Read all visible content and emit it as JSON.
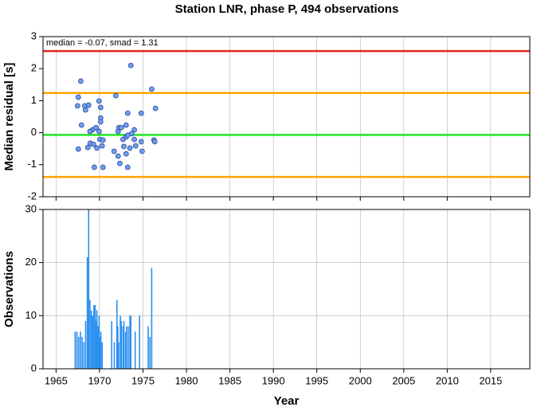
{
  "chart_data": [
    {
      "type": "scatter",
      "title": "Station LNR, phase P, 494 observations",
      "annotation": "median = -0.07, smad = 1.31",
      "ylabel": "Median residual [s]",
      "xlim": [
        1963.5,
        2019.5
      ],
      "xticks": [
        1965,
        1970,
        1975,
        1980,
        1985,
        1990,
        1995,
        2000,
        2005,
        2010,
        2015
      ],
      "ylim": [
        -2,
        3
      ],
      "yticks": [
        -2,
        -1,
        0,
        1,
        2,
        3
      ],
      "grid": true,
      "color": "#6f9df0",
      "hlines": [
        {
          "value": 2.55,
          "color": "#e8231c"
        },
        {
          "value": 1.24,
          "color": "#ffa500"
        },
        {
          "value": -0.07,
          "color": "#1ee61e"
        },
        {
          "value": -1.38,
          "color": "#ffa500"
        }
      ],
      "x": [
        1967.56,
        1967.47,
        1967.84,
        1967.56,
        1967.93,
        1968.3,
        1968.39,
        1968.75,
        1968.66,
        1968.93,
        1969.2,
        1969.3,
        1969.4,
        1969.6,
        1969.7,
        1969.95,
        1970.13,
        1970.13,
        1970.13,
        1969.95,
        1970.04,
        1970.4,
        1970.3,
        1970.4,
        1968.9,
        1971.87,
        1971.68,
        1972.14,
        1972.23,
        1972.5,
        1972.33,
        1972.14,
        1972.7,
        1972.8,
        1973.06,
        1973.06,
        1973.24,
        1973.24,
        1973.06,
        1973.24,
        1973.6,
        1973.7,
        1973.5,
        1974.0,
        1974.0,
        1974.16,
        1974.8,
        1974.8,
        1974.9,
        1976.0,
        1976.26,
        1976.35,
        1976.44
      ],
      "values": [
        1.11,
        0.84,
        1.61,
        -0.51,
        0.24,
        0.84,
        0.71,
        0.86,
        -0.46,
        -0.33,
        0.09,
        -0.36,
        -1.08,
        0.16,
        -0.48,
        0.99,
        0.79,
        0.46,
        0.34,
        0.04,
        -0.21,
        -0.23,
        -0.41,
        -1.08,
        0.04,
        1.16,
        -0.58,
        0.04,
        0.16,
        0.16,
        -0.96,
        -0.73,
        -0.21,
        -0.43,
        0.24,
        -0.13,
        0.61,
        -0.08,
        -0.66,
        -1.08,
        2.1,
        -0.03,
        -0.48,
        0.09,
        -0.21,
        -0.41,
        0.61,
        -0.28,
        -0.58,
        1.36,
        -0.23,
        -0.28,
        0.76
      ]
    },
    {
      "type": "bar",
      "ylabel": "Observations",
      "xlabel": "Year",
      "xlim": [
        1963.5,
        2019.5
      ],
      "xticks": [
        1965,
        1970,
        1975,
        1980,
        1985,
        1990,
        1995,
        2000,
        2005,
        2010,
        2015
      ],
      "ylim": [
        0,
        30
      ],
      "yticks": [
        0,
        10,
        20,
        30
      ],
      "grid": true,
      "color": "#2b8ff0",
      "x": [
        1967.2,
        1967.4,
        1967.6,
        1967.8,
        1968.0,
        1968.2,
        1968.4,
        1968.6,
        1968.75,
        1968.9,
        1969.05,
        1969.2,
        1969.35,
        1969.5,
        1969.6,
        1969.7,
        1969.85,
        1969.95,
        1970.05,
        1970.15,
        1970.3,
        1971.4,
        1971.7,
        1972.0,
        1972.1,
        1972.2,
        1972.4,
        1972.5,
        1972.7,
        1972.8,
        1973.0,
        1973.1,
        1973.3,
        1973.5,
        1973.6,
        1974.1,
        1974.6,
        1975.6,
        1975.8,
        1976.0
      ],
      "values": [
        7,
        7,
        6,
        7,
        6,
        5,
        9,
        21,
        30,
        13,
        11,
        10,
        12,
        12,
        9,
        11,
        8,
        10,
        6,
        7,
        5,
        9,
        5,
        13,
        8,
        5,
        10,
        9,
        8,
        9,
        7,
        8,
        8,
        10,
        10,
        7,
        10,
        8,
        6,
        19
      ]
    }
  ]
}
